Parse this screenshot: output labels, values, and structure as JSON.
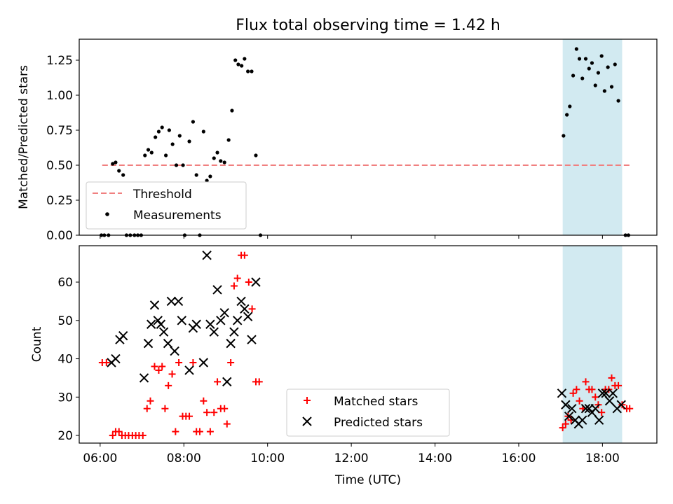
{
  "title": "Flux total observing time = 1.42 h",
  "x_label": "Time (UTC)",
  "x_ticks": [
    "06:00",
    "08:00",
    "10:00",
    "12:00",
    "14:00",
    "16:00",
    "18:00"
  ],
  "colors": {
    "threshold": "#f08080",
    "measurements": "#000000",
    "matched": "#ff0000",
    "predicted": "#000000",
    "window_shade": "#add8e6"
  },
  "chart_data": [
    {
      "type": "scatter",
      "title": "Flux total observing time = 1.42 h",
      "xlabel": "",
      "ylabel": "Matched/Predicted stars",
      "xlim": [
        5.5,
        19.3
      ],
      "ylim": [
        0,
        1.4
      ],
      "grid": false,
      "legend_position": "lower-left",
      "x_ticks": [
        6,
        8,
        10,
        12,
        14,
        16,
        18
      ],
      "y_ticks": [
        0.0,
        0.25,
        0.5,
        0.75,
        1.0,
        1.25
      ],
      "y_tick_labels": [
        "0.00",
        "0.25",
        "0.50",
        "0.75",
        "1.00",
        "1.25"
      ],
      "shaded_interval": [
        17.05,
        18.47
      ],
      "threshold": {
        "name": "Threshold",
        "value": 0.5,
        "x_range": [
          6.05,
          18.65
        ]
      },
      "series": [
        {
          "name": "Measurements",
          "points": [
            [
              6.03,
              0.0
            ],
            [
              6.1,
              0.0
            ],
            [
              6.2,
              0.0
            ],
            [
              6.3,
              0.51
            ],
            [
              6.37,
              0.52
            ],
            [
              6.45,
              0.46
            ],
            [
              6.55,
              0.43
            ],
            [
              6.63,
              0.0
            ],
            [
              6.72,
              0.0
            ],
            [
              6.82,
              0.0
            ],
            [
              6.9,
              0.0
            ],
            [
              6.98,
              0.0
            ],
            [
              7.07,
              0.57
            ],
            [
              7.15,
              0.61
            ],
            [
              7.23,
              0.59
            ],
            [
              7.32,
              0.7
            ],
            [
              7.4,
              0.74
            ],
            [
              7.48,
              0.77
            ],
            [
              7.57,
              0.57
            ],
            [
              7.65,
              0.75
            ],
            [
              7.73,
              0.65
            ],
            [
              7.82,
              0.5
            ],
            [
              7.9,
              0.71
            ],
            [
              7.98,
              0.5
            ],
            [
              8.02,
              0.0
            ],
            [
              8.13,
              0.67
            ],
            [
              8.22,
              0.81
            ],
            [
              8.3,
              0.43
            ],
            [
              8.38,
              0.0
            ],
            [
              8.47,
              0.74
            ],
            [
              8.55,
              0.39
            ],
            [
              8.63,
              0.42
            ],
            [
              8.72,
              0.55
            ],
            [
              8.8,
              0.59
            ],
            [
              8.88,
              0.53
            ],
            [
              8.97,
              0.52
            ],
            [
              9.07,
              0.68
            ],
            [
              9.15,
              0.89
            ],
            [
              9.23,
              1.25
            ],
            [
              9.3,
              1.22
            ],
            [
              9.38,
              1.21
            ],
            [
              9.45,
              1.26
            ],
            [
              9.53,
              1.17
            ],
            [
              9.62,
              1.17
            ],
            [
              9.72,
              0.57
            ],
            [
              9.83,
              0.0
            ],
            [
              17.07,
              0.71
            ],
            [
              17.15,
              0.86
            ],
            [
              17.22,
              0.92
            ],
            [
              17.3,
              1.14
            ],
            [
              17.38,
              1.33
            ],
            [
              17.45,
              1.26
            ],
            [
              17.52,
              1.12
            ],
            [
              17.6,
              1.26
            ],
            [
              17.68,
              1.19
            ],
            [
              17.75,
              1.23
            ],
            [
              17.83,
              1.07
            ],
            [
              17.9,
              1.16
            ],
            [
              17.98,
              1.28
            ],
            [
              18.05,
              1.03
            ],
            [
              18.13,
              1.2
            ],
            [
              18.22,
              1.06
            ],
            [
              18.3,
              1.22
            ],
            [
              18.38,
              0.96
            ],
            [
              18.55,
              0.0
            ],
            [
              18.62,
              0.0
            ]
          ]
        }
      ]
    },
    {
      "type": "scatter",
      "title": "",
      "xlabel": "Time (UTC)",
      "ylabel": "Count",
      "xlim": [
        5.5,
        19.3
      ],
      "ylim": [
        18,
        69.5
      ],
      "grid": false,
      "legend_position": "lower-center",
      "x_ticks": [
        6,
        8,
        10,
        12,
        14,
        16,
        18
      ],
      "y_ticks": [
        20,
        30,
        40,
        50,
        60
      ],
      "y_tick_labels": [
        "20",
        "30",
        "40",
        "50",
        "60"
      ],
      "shaded_interval": [
        17.05,
        18.47
      ],
      "series": [
        {
          "name": "Matched stars",
          "points": [
            [
              6.05,
              39
            ],
            [
              6.15,
              39
            ],
            [
              6.3,
              20
            ],
            [
              6.37,
              21
            ],
            [
              6.45,
              21
            ],
            [
              6.52,
              20
            ],
            [
              6.6,
              20
            ],
            [
              6.68,
              20
            ],
            [
              6.77,
              20
            ],
            [
              6.85,
              20
            ],
            [
              6.93,
              20
            ],
            [
              7.02,
              20
            ],
            [
              7.12,
              27
            ],
            [
              7.2,
              29
            ],
            [
              7.3,
              38
            ],
            [
              7.4,
              37
            ],
            [
              7.48,
              38
            ],
            [
              7.55,
              27
            ],
            [
              7.63,
              33
            ],
            [
              7.72,
              36
            ],
            [
              7.8,
              21
            ],
            [
              7.88,
              39
            ],
            [
              7.97,
              25
            ],
            [
              8.05,
              25
            ],
            [
              8.13,
              25
            ],
            [
              8.22,
              39
            ],
            [
              8.3,
              21
            ],
            [
              8.38,
              21
            ],
            [
              8.47,
              29
            ],
            [
              8.55,
              26
            ],
            [
              8.63,
              21
            ],
            [
              8.72,
              26
            ],
            [
              8.8,
              34
            ],
            [
              8.88,
              27
            ],
            [
              8.97,
              27
            ],
            [
              9.03,
              23
            ],
            [
              9.12,
              39
            ],
            [
              9.2,
              59
            ],
            [
              9.28,
              61
            ],
            [
              9.37,
              67
            ],
            [
              9.45,
              67
            ],
            [
              9.55,
              60
            ],
            [
              9.63,
              53
            ],
            [
              9.72,
              34
            ],
            [
              9.8,
              34
            ],
            [
              17.05,
              22
            ],
            [
              17.12,
              23
            ],
            [
              17.18,
              25
            ],
            [
              17.25,
              24
            ],
            [
              17.3,
              31
            ],
            [
              17.38,
              32
            ],
            [
              17.45,
              29
            ],
            [
              17.53,
              27
            ],
            [
              17.6,
              34
            ],
            [
              17.68,
              32
            ],
            [
              17.75,
              32
            ],
            [
              17.83,
              30
            ],
            [
              17.9,
              28
            ],
            [
              17.98,
              26
            ],
            [
              18.07,
              32
            ],
            [
              18.15,
              32
            ],
            [
              18.22,
              35
            ],
            [
              18.3,
              33
            ],
            [
              18.38,
              33
            ],
            [
              18.47,
              28
            ],
            [
              18.58,
              27
            ],
            [
              18.65,
              27
            ]
          ]
        },
        {
          "name": "Predicted stars",
          "points": [
            [
              6.27,
              39
            ],
            [
              6.37,
              40
            ],
            [
              6.47,
              45
            ],
            [
              6.55,
              46
            ],
            [
              7.05,
              35
            ],
            [
              7.15,
              44
            ],
            [
              7.22,
              49
            ],
            [
              7.3,
              54
            ],
            [
              7.38,
              50
            ],
            [
              7.45,
              49
            ],
            [
              7.52,
              47
            ],
            [
              7.62,
              44
            ],
            [
              7.7,
              55
            ],
            [
              7.78,
              42
            ],
            [
              7.87,
              55
            ],
            [
              7.95,
              50
            ],
            [
              8.13,
              37
            ],
            [
              8.22,
              48
            ],
            [
              8.3,
              49
            ],
            [
              8.47,
              39
            ],
            [
              8.55,
              67
            ],
            [
              8.63,
              49
            ],
            [
              8.72,
              47
            ],
            [
              8.8,
              58
            ],
            [
              8.88,
              50
            ],
            [
              8.97,
              52
            ],
            [
              9.03,
              34
            ],
            [
              9.12,
              44
            ],
            [
              9.2,
              47
            ],
            [
              9.28,
              50
            ],
            [
              9.37,
              55
            ],
            [
              9.45,
              53
            ],
            [
              9.53,
              51
            ],
            [
              9.62,
              45
            ],
            [
              9.72,
              60
            ],
            [
              17.03,
              31
            ],
            [
              17.12,
              28
            ],
            [
              17.2,
              25
            ],
            [
              17.27,
              27
            ],
            [
              17.35,
              24
            ],
            [
              17.43,
              23
            ],
            [
              17.52,
              24
            ],
            [
              17.6,
              27
            ],
            [
              17.68,
              27
            ],
            [
              17.75,
              26
            ],
            [
              17.83,
              27
            ],
            [
              17.92,
              24
            ],
            [
              18.0,
              31
            ],
            [
              18.08,
              31
            ],
            [
              18.17,
              29
            ],
            [
              18.25,
              31
            ],
            [
              18.35,
              27
            ],
            [
              18.45,
              28
            ]
          ]
        }
      ]
    }
  ]
}
